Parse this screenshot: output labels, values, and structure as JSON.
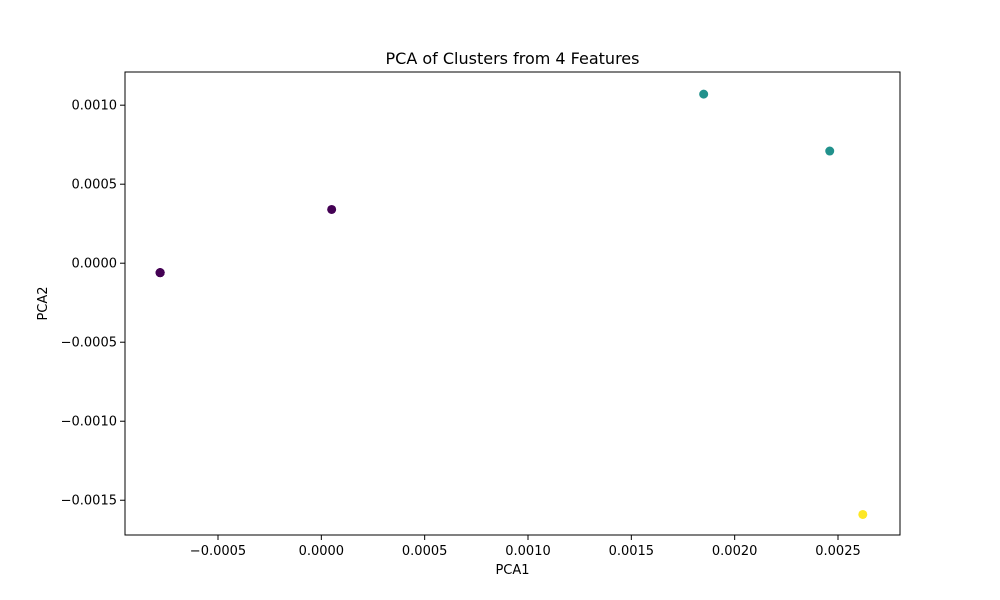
{
  "chart_data": {
    "type": "scatter",
    "title": "PCA of Clusters from 4 Features",
    "xlabel": "PCA1",
    "ylabel": "PCA2",
    "xlim": [
      -0.00095,
      0.0028
    ],
    "ylim": [
      -0.00172,
      0.00121
    ],
    "xticks": [
      {
        "value": -0.0005,
        "label": "−0.0005"
      },
      {
        "value": 0.0,
        "label": "0.0000"
      },
      {
        "value": 0.0005,
        "label": "0.0005"
      },
      {
        "value": 0.001,
        "label": "0.0010"
      },
      {
        "value": 0.0015,
        "label": "0.0015"
      },
      {
        "value": 0.002,
        "label": "0.0020"
      },
      {
        "value": 0.0025,
        "label": "0.0025"
      }
    ],
    "yticks": [
      {
        "value": 0.001,
        "label": "0.0010"
      },
      {
        "value": 0.0005,
        "label": "0.0005"
      },
      {
        "value": 0.0,
        "label": "0.0000"
      },
      {
        "value": -0.0005,
        "label": "−0.0005"
      },
      {
        "value": -0.001,
        "label": "−0.0010"
      },
      {
        "value": -0.0015,
        "label": "−0.0015"
      }
    ],
    "grid": false,
    "cluster_colors": [
      "#440154",
      "#21918c",
      "#fde725"
    ],
    "points": [
      {
        "x": -0.00078,
        "y": -6e-05,
        "cluster": 0
      },
      {
        "x": -0.00078,
        "y": -6e-05,
        "cluster": 0
      },
      {
        "x": -0.00078,
        "y": -6e-05,
        "cluster": 0
      },
      {
        "x": -0.00078,
        "y": -6e-05,
        "cluster": 0
      },
      {
        "x": 5e-05,
        "y": 0.00034,
        "cluster": 0
      },
      {
        "x": 0.00185,
        "y": 0.00107,
        "cluster": 1
      },
      {
        "x": 0.00246,
        "y": 0.00071,
        "cluster": 1
      },
      {
        "x": 0.00262,
        "y": -0.00159,
        "cluster": 2
      }
    ]
  }
}
